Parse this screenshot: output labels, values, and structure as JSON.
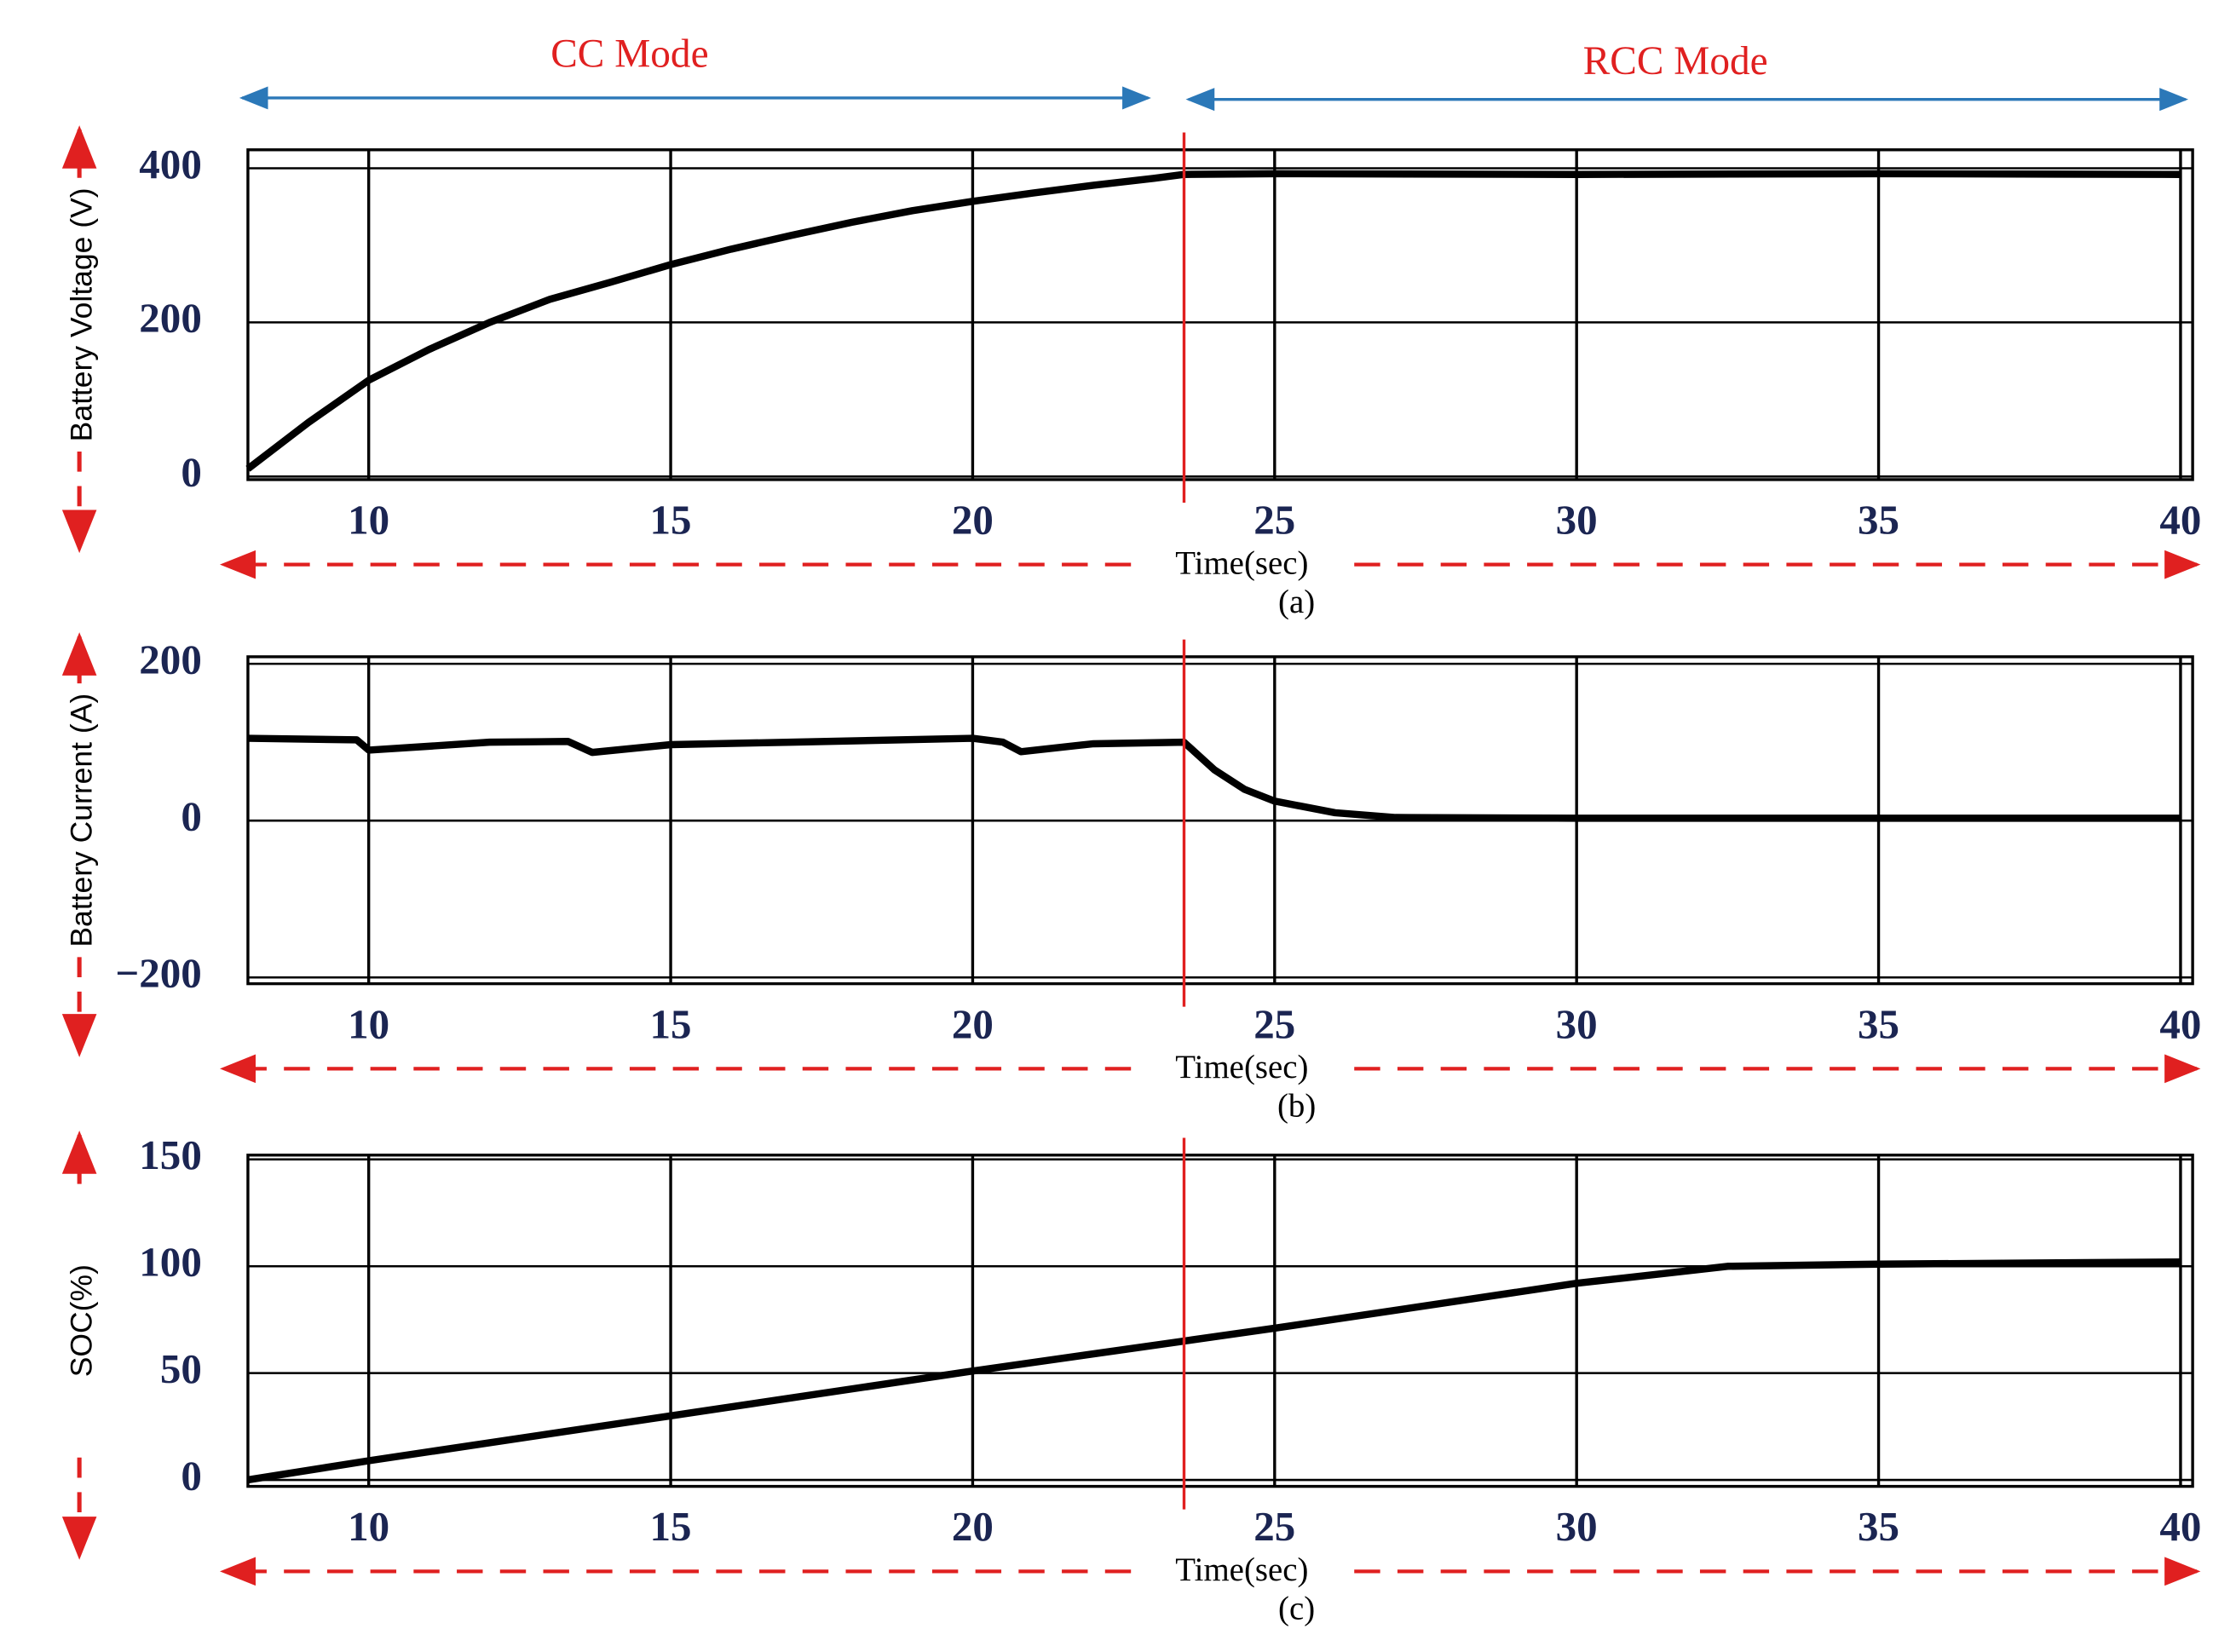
{
  "cc_label": "CC Mode",
  "rcc_label": "RCC Mode",
  "mode_change_x": 23.5,
  "chart_data": [
    {
      "type": "line",
      "ylabel": "Battery Voltage (V)",
      "xlabel": "Time(sec)",
      "caption": "(a)",
      "xlim": [
        8,
        40.2
      ],
      "xticks": [
        10,
        15,
        20,
        25,
        30,
        35,
        40
      ],
      "ylim": [
        -4,
        424
      ],
      "yticks": [
        0,
        200,
        400
      ],
      "grid": true,
      "series": [
        {
          "color": "#000000",
          "x": [
            8,
            9,
            10,
            11,
            12,
            13,
            14,
            15,
            16,
            17,
            18,
            19,
            20,
            21,
            22,
            23,
            23.5,
            25,
            30,
            35,
            40
          ],
          "values": [
            10,
            70,
            125,
            165,
            200,
            230,
            252,
            275,
            295,
            313,
            330,
            345,
            357,
            368,
            378,
            387,
            392,
            393,
            392,
            393,
            392
          ]
        }
      ]
    },
    {
      "type": "line",
      "ylabel": "Battery Current (A)",
      "xlabel": "Time(sec)",
      "caption": "(b)",
      "xlim": [
        8,
        40.2
      ],
      "xticks": [
        10,
        15,
        20,
        25,
        30,
        35,
        40
      ],
      "ylim": [
        -208,
        209
      ],
      "yticks": [
        {
          "value": -200,
          "label": "−200"
        },
        0,
        200
      ],
      "grid": true,
      "series": [
        {
          "color": "#000000",
          "x": [
            8,
            9.8,
            10,
            11,
            12,
            13.3,
            13.7,
            15,
            17,
            20,
            20.5,
            20.8,
            22,
            23.5,
            24,
            24.5,
            25,
            26,
            27,
            30,
            35,
            40
          ],
          "values": [
            105,
            103,
            90,
            95,
            100,
            101,
            87,
            97,
            100,
            105,
            100,
            88,
            98,
            100,
            65,
            40,
            25,
            10,
            4,
            3,
            3,
            3
          ]
        }
      ]
    },
    {
      "type": "line",
      "ylabel": "SOC(%)",
      "xlabel": "Time(sec)",
      "caption": "(c)",
      "xlim": [
        8,
        40.2
      ],
      "xticks": [
        10,
        15,
        20,
        25,
        30,
        35,
        40
      ],
      "ylim": [
        -3,
        152
      ],
      "yticks": [
        0,
        50,
        100,
        150
      ],
      "grid": true,
      "series": [
        {
          "color": "#000000",
          "x": [
            8,
            10,
            15,
            20,
            23.5,
            25,
            30,
            32.5,
            35,
            40
          ],
          "values": [
            0,
            9,
            30,
            51,
            65,
            71,
            92,
            100,
            101,
            102
          ]
        }
      ]
    }
  ]
}
